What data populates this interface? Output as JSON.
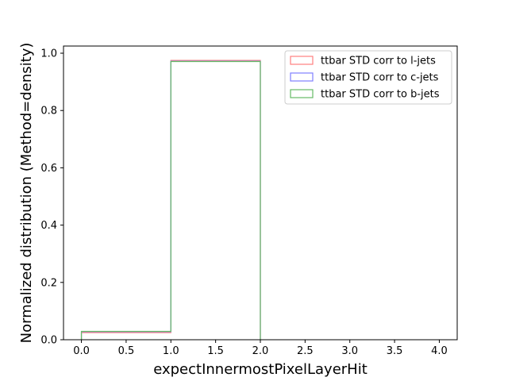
{
  "chart_data": {
    "type": "histogram",
    "xlabel": "expectInnermostPixelLayerHit",
    "ylabel": "Normalized distribution (Method=density)",
    "xlim": [
      -0.2,
      4.2
    ],
    "ylim": [
      0,
      1.025
    ],
    "x_ticks": [
      "0.0",
      "0.5",
      "1.0",
      "1.5",
      "2.0",
      "2.5",
      "3.0",
      "3.5",
      "4.0"
    ],
    "y_ticks": [
      "0.0",
      "0.2",
      "0.4",
      "0.6",
      "0.8",
      "1.0"
    ],
    "bin_edges": [
      0,
      1,
      2
    ],
    "grid": false,
    "legend_position": "top-right",
    "series": [
      {
        "name": "ttbar STD corr to l-jets",
        "color": "#ff7f7f",
        "values": [
          0.025,
          0.975
        ]
      },
      {
        "name": "ttbar STD corr to c-jets",
        "color": "#7f7fff",
        "values": [
          0.028,
          0.972
        ]
      },
      {
        "name": "ttbar STD corr to b-jets",
        "color": "#66bb66",
        "values": [
          0.029,
          0.971
        ]
      }
    ]
  }
}
